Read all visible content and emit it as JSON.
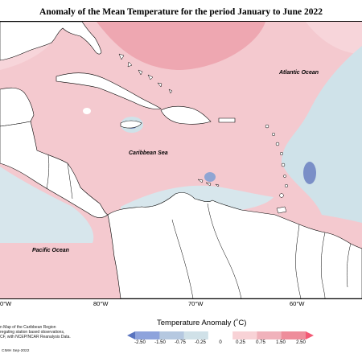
{
  "title": "Anomaly of the Mean Temperature for the period January to June 2022",
  "labels": {
    "atlantic": "Atlantic Ocean",
    "caribbean": "Caribbean Sea",
    "pacific": "Pacific Ocean"
  },
  "longitudes": [
    "0°W",
    "80°W",
    "70°W",
    "60°W"
  ],
  "credit_lines": [
    "n Map of the Caribbean Region",
    "regating station based observations,",
    "CF, with NCEP/NCAR Reanalysis Data."
  ],
  "copyright": "CIMH Sep-2022",
  "legend": {
    "title": "Temperature Anomaly (˚C)",
    "ticks": [
      "-2.50",
      "-1.50",
      "-0.75",
      "-0.25",
      "0",
      "0.25",
      "0.75",
      "1.50",
      "2.50"
    ],
    "colors": [
      "#5a74bf",
      "#8ea3dc",
      "#b5c8e0",
      "#d0e1e8",
      "#ffffff",
      "#f8d2d6",
      "#f0b2bb",
      "#ee8d9b",
      "#f35a75"
    ]
  },
  "colors": {
    "warm_background": "#f4c9cf",
    "warm_strong": "#eea7b1",
    "cool": "#cfe2e9",
    "land": "#ffffff"
  }
}
